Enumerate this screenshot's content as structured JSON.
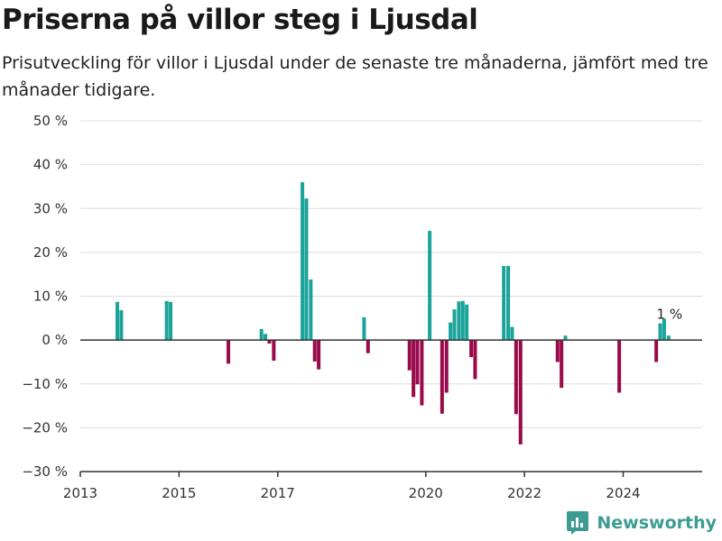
{
  "title": "Priserna på villor steg i Ljusdal",
  "subtitle": "Prisutveckling för villor i Ljusdal under de senaste tre månaderna, jämfört med tre månader tidigare.",
  "brand": {
    "name": "Newsworthy"
  },
  "colors": {
    "positive": "#1aa39a",
    "negative": "#990a4a",
    "grid": "#dddddd",
    "axis": "#333333"
  },
  "chart_data": {
    "type": "bar",
    "title": "Priserna på villor steg i Ljusdal",
    "subtitle": "Prisutveckling för villor i Ljusdal under de senaste tre månaderna, jämfört med tre månader tidigare.",
    "xlabel": "",
    "ylabel": "",
    "ylim": [
      -30,
      50
    ],
    "xlim": [
      2013.0,
      2025.6
    ],
    "y_ticks": [
      -30,
      -20,
      -10,
      0,
      10,
      20,
      30,
      40,
      50
    ],
    "y_tick_labels": [
      "−30 %",
      "−20 %",
      "−10 %",
      "0 %",
      "10 %",
      "20 %",
      "30 %",
      "40 %",
      "50 %"
    ],
    "x_ticks": [
      2013,
      2015,
      2017,
      2020,
      2022,
      2024
    ],
    "x_tick_labels": [
      "2013",
      "2015",
      "2017",
      "2020",
      "2022",
      "2024"
    ],
    "grid": true,
    "legend": "none",
    "points": [
      {
        "x": 2013.75,
        "y": 8.7
      },
      {
        "x": 2013.83,
        "y": 6.8
      },
      {
        "x": 2014.75,
        "y": 8.9
      },
      {
        "x": 2014.83,
        "y": 8.7
      },
      {
        "x": 2016.0,
        "y": -5.4
      },
      {
        "x": 2016.67,
        "y": 2.5
      },
      {
        "x": 2016.75,
        "y": 1.4
      },
      {
        "x": 2016.83,
        "y": -0.8
      },
      {
        "x": 2016.92,
        "y": -4.7
      },
      {
        "x": 2017.5,
        "y": 36.0
      },
      {
        "x": 2017.58,
        "y": 32.3
      },
      {
        "x": 2017.67,
        "y": 13.8
      },
      {
        "x": 2017.75,
        "y": -4.9
      },
      {
        "x": 2017.83,
        "y": -6.7
      },
      {
        "x": 2018.75,
        "y": 5.2
      },
      {
        "x": 2018.83,
        "y": -3.0
      },
      {
        "x": 2019.67,
        "y": -6.9
      },
      {
        "x": 2019.75,
        "y": -13.0
      },
      {
        "x": 2019.83,
        "y": -10.1
      },
      {
        "x": 2019.92,
        "y": -14.9
      },
      {
        "x": 2020.08,
        "y": 24.9
      },
      {
        "x": 2020.33,
        "y": -16.8
      },
      {
        "x": 2020.42,
        "y": -12.0
      },
      {
        "x": 2020.5,
        "y": 4.0
      },
      {
        "x": 2020.58,
        "y": 7.0
      },
      {
        "x": 2020.67,
        "y": 8.8
      },
      {
        "x": 2020.75,
        "y": 8.9
      },
      {
        "x": 2020.83,
        "y": 8.1
      },
      {
        "x": 2020.92,
        "y": -3.9
      },
      {
        "x": 2021.0,
        "y": -8.9
      },
      {
        "x": 2021.58,
        "y": 16.9
      },
      {
        "x": 2021.67,
        "y": 16.9
      },
      {
        "x": 2021.75,
        "y": 3.0
      },
      {
        "x": 2021.83,
        "y": -16.9
      },
      {
        "x": 2021.92,
        "y": -23.8
      },
      {
        "x": 2022.67,
        "y": -5.0
      },
      {
        "x": 2022.75,
        "y": -10.9
      },
      {
        "x": 2022.83,
        "y": 1.0
      },
      {
        "x": 2023.92,
        "y": -12.0
      },
      {
        "x": 2024.67,
        "y": -5.0
      },
      {
        "x": 2024.75,
        "y": 3.8
      },
      {
        "x": 2024.83,
        "y": 4.9
      },
      {
        "x": 2024.92,
        "y": 1.0
      }
    ],
    "annotations": [
      {
        "x": 2024.92,
        "y": 1.0,
        "label": "1 %"
      }
    ]
  }
}
